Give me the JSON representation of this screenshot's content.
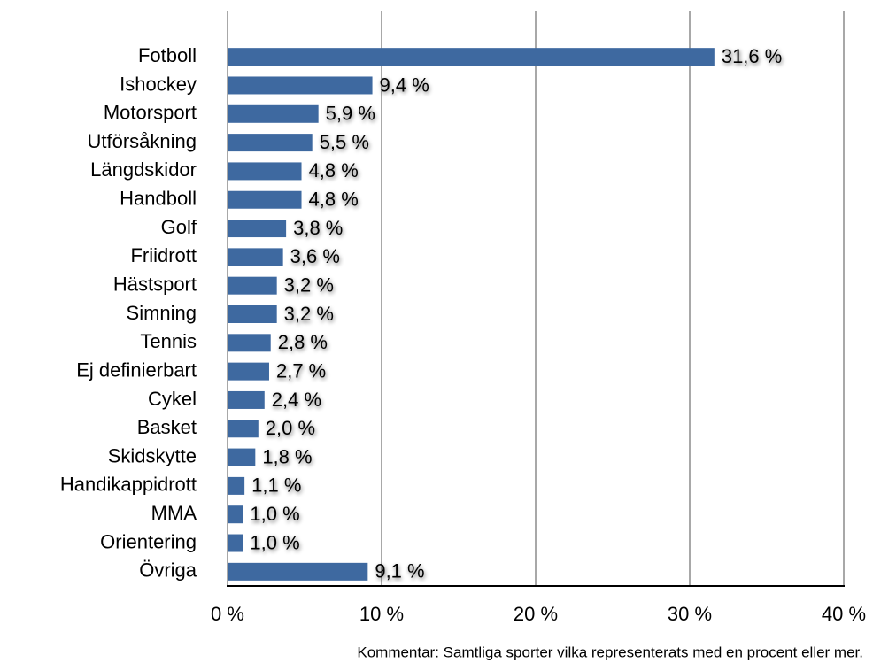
{
  "chart_data": {
    "type": "bar",
    "orientation": "horizontal",
    "categories": [
      "Fotboll",
      "Ishockey",
      "Motorsport",
      "Utförsåkning",
      "Längdskidor",
      "Handboll",
      "Golf",
      "Friidrott",
      "Hästsport",
      "Simning",
      "Tennis",
      "Ej definierbart",
      "Cykel",
      "Basket",
      "Skidskytte",
      "Handikappidrott",
      "MMA",
      "Orientering",
      "Övriga"
    ],
    "values": [
      31.6,
      9.4,
      5.9,
      5.5,
      4.8,
      4.8,
      3.8,
      3.6,
      3.2,
      3.2,
      2.8,
      2.7,
      2.4,
      2.0,
      1.8,
      1.1,
      1.0,
      1.0,
      9.1
    ],
    "value_labels": [
      "31,6 %",
      "9,4 %",
      "5,9 %",
      "5,5 %",
      "4,8 %",
      "4,8 %",
      "3,8 %",
      "3,6 %",
      "3,2 %",
      "3,2 %",
      "2,8 %",
      "2,7 %",
      "2,4 %",
      "2,0 %",
      "1,8 %",
      "1,1 %",
      "1,0 %",
      "1,0 %",
      "9,1 %"
    ],
    "color": "#3e69a0",
    "xlim": [
      0,
      40
    ],
    "xticks": [
      {
        "value": 0,
        "label": "0 %"
      },
      {
        "value": 10,
        "label": "10 %"
      },
      {
        "value": 20,
        "label": "20 %"
      },
      {
        "value": 30,
        "label": "30 %"
      },
      {
        "value": 40,
        "label": "40 %"
      }
    ],
    "grid": true,
    "annotation": "Kommentar: Samtliga sporter vilka representerats med en procent eller mer."
  }
}
